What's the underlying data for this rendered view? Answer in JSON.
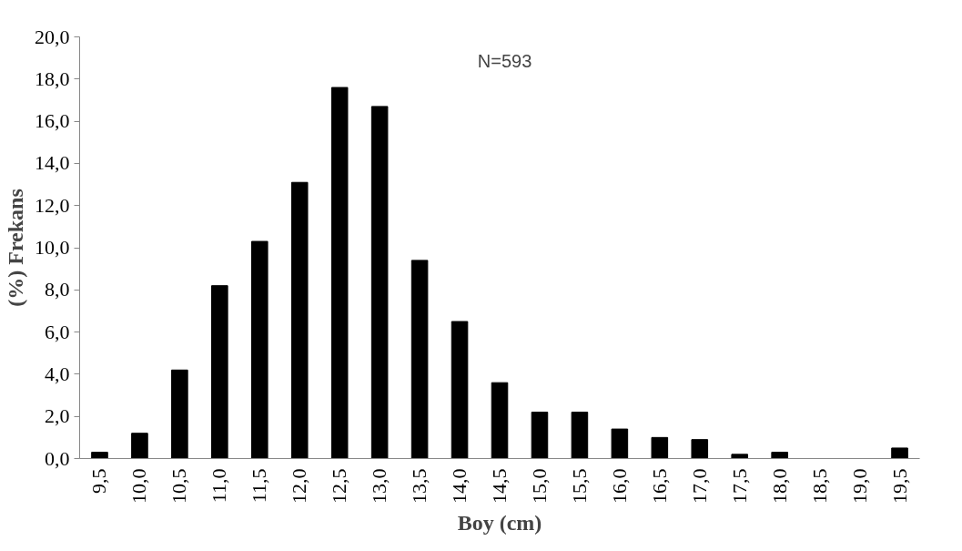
{
  "chart_data": {
    "type": "bar",
    "xlabel": "Boy (cm)",
    "ylabel": "(%) Frekans",
    "categories": [
      "9,5",
      "10,0",
      "10,5",
      "11,0",
      "11,5",
      "12,0",
      "12,5",
      "13,0",
      "13,5",
      "14,0",
      "14,5",
      "15,0",
      "15,5",
      "16,0",
      "16,5",
      "17,0",
      "17,5",
      "18,0",
      "18,5",
      "19,0",
      "19,5"
    ],
    "values": [
      0.3,
      1.2,
      4.2,
      8.2,
      10.3,
      13.1,
      17.6,
      16.7,
      9.4,
      6.5,
      3.6,
      2.2,
      2.2,
      1.4,
      1.0,
      0.9,
      0.2,
      0.3,
      0,
      0,
      0.5
    ],
    "color": "#000000",
    "ylim": [
      0,
      20
    ],
    "yticks": [
      {
        "value": 0,
        "label": "0,0"
      },
      {
        "value": 2,
        "label": "2,0"
      },
      {
        "value": 4,
        "label": "4,0"
      },
      {
        "value": 6,
        "label": "6,0"
      },
      {
        "value": 8,
        "label": "8,0"
      },
      {
        "value": 10,
        "label": "10,0"
      },
      {
        "value": 12,
        "label": "12,0"
      },
      {
        "value": 14,
        "label": "14,0"
      },
      {
        "value": 16,
        "label": "16,0"
      },
      {
        "value": 18,
        "label": "18,0"
      },
      {
        "value": 20,
        "label": "20,0"
      }
    ],
    "annotations": [
      "N=593"
    ],
    "grid": false
  }
}
